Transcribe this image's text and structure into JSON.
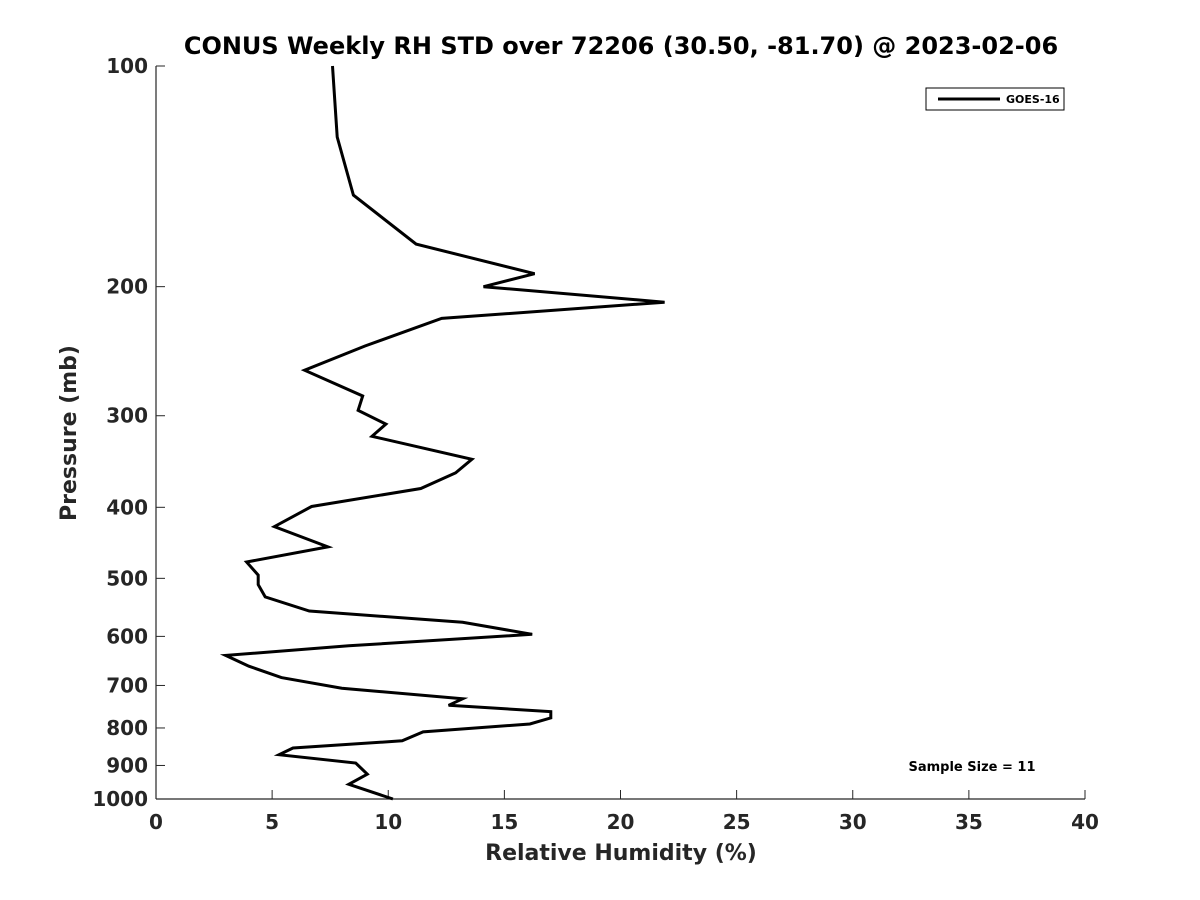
{
  "chart_data": {
    "type": "line",
    "title": "CONUS Weekly RH STD over 72206 (30.50, -81.70) @ 2023-02-06",
    "xlabel": "Relative Humidity (%)",
    "ylabel": "Pressure (mb)",
    "xlim": [
      0,
      40
    ],
    "ylim": [
      100,
      1000
    ],
    "y_scale": "log",
    "y_reversed": true,
    "xticks": [
      0,
      5,
      10,
      15,
      20,
      25,
      30,
      35,
      40
    ],
    "yticks": [
      100,
      200,
      300,
      400,
      500,
      600,
      700,
      800,
      900,
      1000
    ],
    "grid": false,
    "legend": {
      "position": "top-right",
      "entries": [
        "GOES-16"
      ]
    },
    "annotations": [
      "Sample Size = 11"
    ],
    "series": [
      {
        "name": "GOES-16",
        "color": "#000000",
        "points": [
          [
            7.6,
            100
          ],
          [
            7.8,
            125
          ],
          [
            8.5,
            150
          ],
          [
            11.2,
            175
          ],
          [
            16.3,
            192
          ],
          [
            14.1,
            200
          ],
          [
            21.9,
            210
          ],
          [
            12.3,
            221
          ],
          [
            9.0,
            241
          ],
          [
            6.4,
            260
          ],
          [
            8.9,
            282
          ],
          [
            8.7,
            295
          ],
          [
            9.9,
            308
          ],
          [
            9.3,
            320
          ],
          [
            13.6,
            344
          ],
          [
            12.9,
            359
          ],
          [
            11.4,
            377
          ],
          [
            6.7,
            399
          ],
          [
            5.1,
            425
          ],
          [
            7.4,
            453
          ],
          [
            3.9,
            475
          ],
          [
            4.4,
            495
          ],
          [
            4.4,
            510
          ],
          [
            4.7,
            530
          ],
          [
            6.6,
            554
          ],
          [
            13.2,
            574
          ],
          [
            16.2,
            596
          ],
          [
            8.3,
            618
          ],
          [
            3.0,
            637
          ],
          [
            4.0,
            659
          ],
          [
            5.4,
            683
          ],
          [
            8.0,
            706
          ],
          [
            13.2,
            730
          ],
          [
            12.6,
            745
          ],
          [
            17.0,
            760
          ],
          [
            17.0,
            775
          ],
          [
            16.1,
            790
          ],
          [
            11.5,
            810
          ],
          [
            10.6,
            833
          ],
          [
            5.9,
            852
          ],
          [
            5.3,
            870
          ],
          [
            8.6,
            893
          ],
          [
            9.1,
            925
          ],
          [
            8.3,
            955
          ],
          [
            10.2,
            1000
          ]
        ]
      }
    ]
  }
}
